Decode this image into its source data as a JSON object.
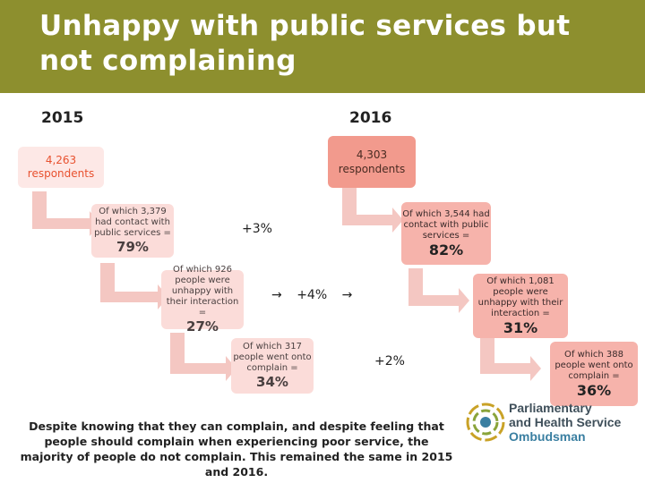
{
  "title": "Unhappy with public services but not complaining",
  "years": {
    "left": "2015",
    "right": "2016"
  },
  "left_boxes": [
    {
      "text": "4,263 respondents",
      "pct": ""
    },
    {
      "text": "Of which 3,379 had contact with public services =",
      "pct": "79%"
    },
    {
      "text": "Of which 926 people were unhappy with their interaction =",
      "pct": "27%"
    },
    {
      "text": "Of which 317 people went onto complain =",
      "pct": "34%"
    }
  ],
  "right_boxes": [
    {
      "text": "4,303 respondents",
      "pct": ""
    },
    {
      "text": "Of which 3,544 had contact with public services =",
      "pct": "82%"
    },
    {
      "text": "Of which 1,081 people were unhappy with their interaction =",
      "pct": "31%"
    },
    {
      "text": "Of which 388 people went onto complain =",
      "pct": "36%"
    }
  ],
  "differences": [
    "+3%",
    "+4%",
    "+2%"
  ],
  "footer": "Despite knowing that they can complain, and despite feeling that people should complain when experiencing poor service, the majority of people do not complain. This remained the same in 2015 and 2016.",
  "logo": {
    "line1": "Parliamentary",
    "line2": "and Health Service",
    "line3": "Ombudsman"
  },
  "colors": {
    "header": "#8d8f2e",
    "left_box": "#fbdcd9",
    "right_box": "#f6b3ab",
    "accent": "#e8512f",
    "dark_box": "#f29a8d"
  }
}
